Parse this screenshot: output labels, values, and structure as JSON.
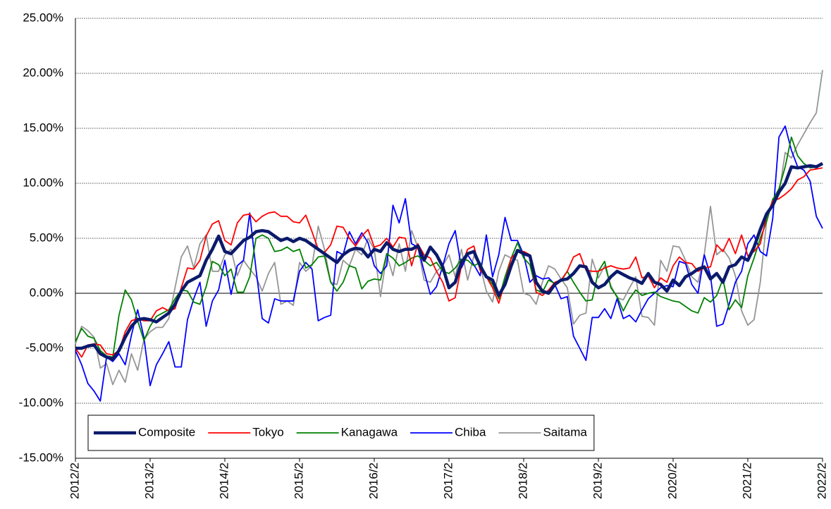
{
  "chart_data": {
    "type": "line",
    "categories": [
      "2012/2",
      null,
      null,
      null,
      null,
      null,
      null,
      null,
      null,
      null,
      null,
      null,
      "2013/2",
      null,
      null,
      null,
      null,
      null,
      null,
      null,
      null,
      null,
      null,
      null,
      "2014/2",
      null,
      null,
      null,
      null,
      null,
      null,
      null,
      null,
      null,
      null,
      null,
      "2015/2",
      null,
      null,
      null,
      null,
      null,
      null,
      null,
      null,
      null,
      null,
      null,
      "2016/2",
      null,
      null,
      null,
      null,
      null,
      null,
      null,
      null,
      null,
      null,
      null,
      "2017/2",
      null,
      null,
      null,
      null,
      null,
      null,
      null,
      null,
      null,
      null,
      null,
      "2018/2",
      null,
      null,
      null,
      null,
      null,
      null,
      null,
      null,
      null,
      null,
      null,
      "2019/2",
      null,
      null,
      null,
      null,
      null,
      null,
      null,
      null,
      null,
      null,
      null,
      "2020/2",
      null,
      null,
      null,
      null,
      null,
      null,
      null,
      null,
      null,
      null,
      null,
      "2021/2",
      null,
      null,
      null,
      null,
      null,
      null,
      null,
      null,
      null,
      null,
      null,
      "2022/2"
    ],
    "series": [
      {
        "name": "Composite",
        "color": "#0b1a6b",
        "line_width": 4.5,
        "values": [
          -5.0,
          -5.0,
          -4.8,
          -4.7,
          -5.5,
          -5.8,
          -6.0,
          -5.2,
          -4.0,
          -3.0,
          -2.4,
          -2.3,
          -2.4,
          -2.6,
          -2.2,
          -1.8,
          -1.0,
          0.2,
          1.0,
          1.3,
          1.6,
          3.0,
          4.0,
          5.2,
          3.8,
          3.6,
          4.2,
          4.8,
          5.1,
          5.6,
          5.7,
          5.6,
          5.2,
          4.8,
          5.0,
          4.7,
          5.0,
          4.8,
          4.4,
          4.0,
          3.6,
          3.2,
          2.8,
          3.5,
          3.9,
          4.1,
          4.0,
          3.3,
          4.0,
          3.8,
          4.6,
          4.0,
          3.8,
          4.0,
          4.0,
          4.3,
          3.0,
          4.2,
          3.5,
          2.4,
          0.5,
          1.0,
          2.8,
          3.6,
          3.8,
          2.5,
          1.5,
          1.2,
          -0.2,
          0.8,
          2.5,
          3.9,
          3.6,
          3.4,
          1.0,
          0.2,
          0.0,
          0.8,
          1.2,
          1.3,
          1.8,
          2.5,
          2.4,
          1.0,
          0.5,
          0.8,
          1.5,
          2.0,
          1.7,
          1.4,
          1.2,
          0.9,
          1.8,
          1.0,
          0.8,
          0.2,
          1.2,
          0.7,
          1.5,
          1.8,
          2.2,
          2.4,
          1.3,
          1.8,
          1.0,
          2.4,
          2.6,
          3.3,
          3.0,
          4.2,
          5.8,
          7.2,
          8.0,
          9.2,
          10.0,
          11.5,
          11.4,
          11.5,
          11.6,
          11.5,
          11.8
        ]
      },
      {
        "name": "Tokyo",
        "color": "#ff0000",
        "line_width": 1.8,
        "values": [
          -5.0,
          -5.8,
          -4.7,
          -4.6,
          -4.7,
          -5.5,
          -5.6,
          -5.2,
          -3.5,
          -2.5,
          -2.3,
          -2.5,
          -2.5,
          -1.6,
          -1.3,
          -1.6,
          -1.4,
          0.5,
          2.3,
          2.2,
          3.0,
          5.2,
          6.3,
          6.6,
          4.8,
          4.4,
          6.4,
          7.1,
          7.2,
          6.5,
          7.0,
          7.3,
          7.4,
          7.0,
          7.0,
          6.5,
          6.4,
          7.1,
          5.6,
          4.0,
          3.7,
          4.4,
          6.1,
          6.0,
          5.0,
          4.3,
          5.2,
          5.8,
          4.2,
          4.4,
          5.0,
          4.2,
          5.1,
          5.0,
          2.5,
          4.5,
          3.5,
          3.2,
          2.0,
          1.0,
          -0.7,
          -0.4,
          2.5,
          4.0,
          4.3,
          2.1,
          1.5,
          0.5,
          -0.9,
          1.0,
          3.2,
          3.8,
          3.8,
          3.5,
          0.1,
          -0.2,
          0.3,
          1.0,
          1.2,
          2.0,
          3.3,
          3.6,
          2.1,
          2.0,
          2.0,
          2.3,
          2.5,
          2.3,
          2.2,
          2.3,
          3.3,
          1.4,
          1.6,
          0.5,
          1.4,
          1.0,
          2.5,
          3.3,
          2.8,
          2.7,
          2.0,
          2.3,
          2.4,
          4.4,
          3.8,
          5.0,
          3.6,
          5.3,
          3.4,
          3.8,
          4.5,
          7.0,
          8.4,
          8.6,
          9.0,
          9.5,
          10.3,
          10.6,
          11.2,
          11.3,
          11.4
        ]
      },
      {
        "name": "Kanagawa",
        "color": "#008000",
        "line_width": 1.8,
        "values": [
          -4.4,
          -3.2,
          -3.9,
          -4.1,
          -5.2,
          -5.7,
          -5.8,
          -2.0,
          0.3,
          -0.6,
          -2.5,
          -4.3,
          -3.0,
          -2.1,
          -1.8,
          -1.5,
          -0.5,
          0.3,
          0.2,
          -0.8,
          -1.0,
          0.6,
          2.9,
          2.6,
          1.6,
          2.2,
          0.1,
          0.1,
          1.5,
          5.0,
          5.3,
          5.0,
          3.8,
          3.9,
          4.2,
          3.8,
          4.0,
          2.3,
          2.6,
          3.3,
          3.4,
          1.0,
          0.2,
          1.0,
          2.5,
          2.3,
          0.4,
          1.1,
          1.3,
          1.2,
          3.6,
          3.2,
          2.5,
          2.8,
          3.2,
          3.4,
          3.0,
          2.5,
          2.8,
          2.0,
          1.8,
          2.3,
          3.1,
          3.0,
          2.5,
          2.8,
          1.5,
          0.8,
          -0.5,
          1.5,
          3.2,
          4.6,
          3.2,
          2.6,
          0.3,
          0.1,
          1.2,
          0.9,
          1.1,
          2.0,
          1.0,
          0.1,
          -0.7,
          -0.6,
          2.0,
          2.9,
          0.5,
          -0.3,
          -1.6,
          -0.5,
          0.3,
          -0.2,
          0.0,
          0.1,
          -0.3,
          -0.5,
          -0.7,
          -0.8,
          -1.2,
          -1.6,
          -1.8,
          -0.4,
          -0.8,
          -0.2,
          1.3,
          -1.5,
          -0.6,
          -1.3,
          1.6,
          3.2,
          5.0,
          6.5,
          8.5,
          9.5,
          11.5,
          14.2,
          12.5,
          11.8,
          11.4,
          11.5,
          11.7
        ]
      },
      {
        "name": "Chiba",
        "color": "#0000ff",
        "line_width": 1.8,
        "values": [
          -5.2,
          -6.5,
          -8.2,
          -8.9,
          -9.8,
          -5.8,
          -6.2,
          -5.5,
          -6.5,
          -3.8,
          -1.5,
          -4.0,
          -8.4,
          -6.5,
          -5.5,
          -4.4,
          -6.7,
          -6.7,
          -2.4,
          -0.5,
          1.0,
          -3.0,
          -0.7,
          0.3,
          3.0,
          -0.1,
          2.5,
          3.0,
          7.3,
          2.2,
          -2.3,
          -2.7,
          -0.5,
          -0.7,
          -0.7,
          -0.7,
          2.0,
          2.8,
          2.2,
          -2.5,
          -2.2,
          -2.0,
          3.8,
          3.5,
          5.6,
          4.5,
          5.5,
          4.6,
          2.5,
          1.8,
          2.5,
          8.0,
          6.4,
          8.6,
          4.5,
          4.2,
          2.0,
          -0.1,
          0.6,
          2.5,
          4.5,
          5.7,
          2.3,
          3.5,
          2.6,
          1.6,
          5.3,
          1.5,
          3.5,
          6.9,
          4.8,
          4.8,
          3.5,
          1.0,
          1.6,
          1.3,
          1.4,
          0.8,
          -0.5,
          -0.3,
          -3.9,
          -5.0,
          -6.1,
          -2.2,
          -2.2,
          -1.4,
          -2.3,
          -0.5,
          -2.3,
          -2.0,
          -2.6,
          -1.5,
          -0.5,
          0.0,
          0.5,
          0.7,
          0.6,
          2.9,
          2.7,
          0.8,
          0.0,
          3.5,
          1.6,
          -3.0,
          -2.8,
          -1.0,
          1.0,
          2.0,
          4.5,
          5.3,
          3.8,
          3.4,
          6.8,
          14.2,
          15.2,
          13.0,
          11.5,
          11.2,
          10.2,
          7.0,
          5.9
        ]
      },
      {
        "name": "Saitama",
        "color": "#969696",
        "line_width": 1.8,
        "values": [
          -4.6,
          -3.0,
          -3.4,
          -4.0,
          -6.8,
          -6.4,
          -8.3,
          -7.0,
          -8.1,
          -5.5,
          -7.0,
          -4.2,
          -3.5,
          -3.1,
          -3.1,
          -2.3,
          0.5,
          3.3,
          4.3,
          2.3,
          4.5,
          5.3,
          2.0,
          2.0,
          3.5,
          4.0,
          1.6,
          3.0,
          2.2,
          1.5,
          0.2,
          1.8,
          2.8,
          -1.0,
          -0.7,
          -1.1,
          2.8,
          2.0,
          2.5,
          6.1,
          4.0,
          1.0,
          0.8,
          3.0,
          2.5,
          4.0,
          3.5,
          5.0,
          4.0,
          -0.3,
          3.5,
          1.6,
          4.5,
          2.0,
          5.7,
          4.2,
          1.2,
          1.0,
          2.0,
          2.5,
          3.5,
          1.5,
          4.0,
          1.2,
          3.4,
          2.5,
          0.2,
          -0.8,
          2.0,
          3.5,
          3.2,
          3.0,
          0.0,
          -0.2,
          -1.0,
          1.0,
          2.5,
          2.2,
          1.3,
          0.5,
          -2.8,
          -2.0,
          -1.8,
          3.1,
          1.4,
          2.5,
          0.7,
          -0.4,
          -0.6,
          0.5,
          1.5,
          -2.1,
          -2.2,
          -2.9,
          3.0,
          2.0,
          4.3,
          4.2,
          3.0,
          1.5,
          1.0,
          3.5,
          7.9,
          3.5,
          4.0,
          3.2,
          1.6,
          -1.6,
          -2.9,
          -2.4,
          1.0,
          6.5,
          8.6,
          9.0,
          12.8,
          12.3,
          13.5,
          14.5,
          15.5,
          16.4,
          20.3
        ]
      }
    ],
    "ylim": [
      -15,
      25
    ],
    "yticks": [
      {
        "value": -15,
        "label": "-15.00%"
      },
      {
        "value": -10,
        "label": "-10.00%"
      },
      {
        "value": -5,
        "label": "-5.00%"
      },
      {
        "value": 0,
        "label": "0.00%"
      },
      {
        "value": 5,
        "label": "5.00%"
      },
      {
        "value": 10,
        "label": "10.00%"
      },
      {
        "value": 15,
        "label": "15.00%"
      },
      {
        "value": 20,
        "label": "20.00%"
      },
      {
        "value": 25,
        "label": "25.00%"
      }
    ],
    "grid": true,
    "legend": "lower left"
  }
}
